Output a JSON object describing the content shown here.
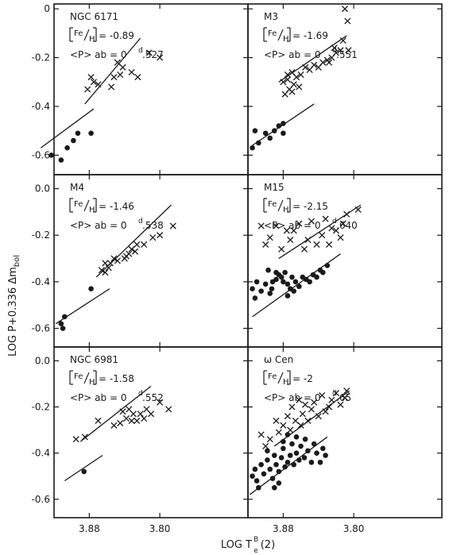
{
  "figure": {
    "ylabel": "LOG P+0.336 Δm",
    "ylabel_sub": "bol",
    "xlabel": "LOG T",
    "xlabel_sup": "B",
    "xlabel_sub": "e",
    "xlabel_tail": "(2)"
  },
  "chart_data": [
    {
      "type": "scatter",
      "cluster": "NGC 6171",
      "fe_label": "Fe",
      "fe_den": "H",
      "fe_value": "-0.89",
      "p_label": "<P> ab = 0",
      "p_sup": "d",
      "p_value": ".527",
      "xlim": [
        3.7,
        3.92
      ],
      "x_reversed": true,
      "ylim": [
        -0.68,
        0.02
      ],
      "yticks": [
        "0",
        "-0.2",
        "-0.4",
        "-0.6"
      ],
      "crosses": [
        [
          3.8,
          -0.2
        ],
        [
          3.812,
          -0.18
        ],
        [
          3.825,
          -0.28
        ],
        [
          3.832,
          -0.26
        ],
        [
          3.842,
          -0.24
        ],
        [
          3.845,
          -0.27
        ],
        [
          3.848,
          -0.22
        ],
        [
          3.855,
          -0.32
        ],
        [
          3.852,
          -0.28
        ],
        [
          3.87,
          -0.31
        ],
        [
          3.878,
          -0.28
        ],
        [
          3.875,
          -0.3
        ],
        [
          3.882,
          -0.33
        ]
      ],
      "dots": [
        [
          3.923,
          -0.6
        ],
        [
          3.912,
          -0.62
        ],
        [
          3.905,
          -0.57
        ],
        [
          3.898,
          -0.54
        ],
        [
          3.893,
          -0.51
        ],
        [
          3.878,
          -0.51
        ]
      ],
      "lines": [
        [
          [
            3.935,
            -0.57
          ],
          [
            3.875,
            -0.41
          ]
        ],
        [
          [
            3.885,
            -0.39
          ],
          [
            3.822,
            -0.12
          ]
        ]
      ]
    },
    {
      "type": "scatter",
      "cluster": "M3",
      "fe_label": "Fe",
      "fe_den": "H",
      "fe_value": "-1.69",
      "p_label": "<P> ab = 0",
      "p_sup": "d",
      "p_value": ".551",
      "xlim": [
        3.7,
        3.92
      ],
      "x_reversed": true,
      "ylim": [
        -0.68,
        0.02
      ],
      "crosses": [
        [
          3.81,
          0.0
        ],
        [
          3.807,
          -0.05
        ],
        [
          3.812,
          -0.13
        ],
        [
          3.806,
          -0.17
        ],
        [
          3.815,
          -0.17
        ],
        [
          3.82,
          -0.18
        ],
        [
          3.825,
          -0.2
        ],
        [
          3.83,
          -0.21
        ],
        [
          3.835,
          -0.22
        ],
        [
          3.845,
          -0.23
        ],
        [
          3.85,
          -0.25
        ],
        [
          3.855,
          -0.24
        ],
        [
          3.86,
          -0.27
        ],
        [
          3.865,
          -0.28
        ],
        [
          3.87,
          -0.26
        ],
        [
          3.875,
          -0.29
        ],
        [
          3.88,
          -0.3
        ],
        [
          3.868,
          -0.31
        ],
        [
          3.873,
          -0.33
        ],
        [
          3.878,
          -0.35
        ],
        [
          3.862,
          -0.32
        ],
        [
          3.84,
          -0.24
        ],
        [
          3.822,
          -0.16
        ],
        [
          3.828,
          -0.22
        ],
        [
          3.875,
          -0.27
        ],
        [
          3.87,
          -0.34
        ]
      ],
      "dots": [
        [
          3.915,
          -0.57
        ],
        [
          3.908,
          -0.55
        ],
        [
          3.9,
          -0.51
        ],
        [
          3.895,
          -0.53
        ],
        [
          3.89,
          -0.5
        ],
        [
          3.885,
          -0.48
        ],
        [
          3.88,
          -0.47
        ],
        [
          3.88,
          -0.51
        ],
        [
          3.912,
          -0.5
        ]
      ],
      "lines": [
        [
          [
            3.915,
            -0.56
          ],
          [
            3.845,
            -0.39
          ]
        ],
        [
          [
            3.885,
            -0.3
          ],
          [
            3.808,
            -0.11
          ]
        ]
      ]
    },
    {
      "type": "scatter",
      "cluster": "M4",
      "fe_label": "Fe",
      "fe_den": "H",
      "fe_value": "-1.46",
      "p_label": "<P> ab = 0",
      "p_sup": "d",
      "p_value": ".538",
      "xlim": [
        3.7,
        3.92
      ],
      "x_reversed": true,
      "ylim": [
        -0.68,
        0.06
      ],
      "yticks": [
        "0.0",
        "-0.2",
        "-0.4",
        "-0.6"
      ],
      "crosses": [
        [
          3.785,
          -0.16
        ],
        [
          3.8,
          -0.2
        ],
        [
          3.808,
          -0.21
        ],
        [
          3.818,
          -0.24
        ],
        [
          3.826,
          -0.24
        ],
        [
          3.828,
          -0.27
        ],
        [
          3.832,
          -0.26
        ],
        [
          3.835,
          -0.28
        ],
        [
          3.838,
          -0.29
        ],
        [
          3.84,
          -0.3
        ],
        [
          3.848,
          -0.31
        ],
        [
          3.852,
          -0.3
        ],
        [
          3.856,
          -0.32
        ],
        [
          3.858,
          -0.34
        ],
        [
          3.862,
          -0.36
        ],
        [
          3.866,
          -0.35
        ],
        [
          3.862,
          -0.32
        ]
      ],
      "dots": [
        [
          3.912,
          -0.58
        ],
        [
          3.91,
          -0.6
        ],
        [
          3.908,
          -0.55
        ],
        [
          3.878,
          -0.43
        ]
      ],
      "lines": [
        [
          [
            3.918,
            -0.58
          ],
          [
            3.857,
            -0.43
          ]
        ],
        [
          [
            3.872,
            -0.38
          ],
          [
            3.787,
            -0.07
          ]
        ]
      ]
    },
    {
      "type": "scatter",
      "cluster": "M15",
      "fe_label": "Fe",
      "fe_den": "H",
      "fe_value": "-2.15",
      "p_label": "<P> ab = 0",
      "p_sup": "d",
      "p_value": ".640",
      "xlim": [
        3.7,
        3.92
      ],
      "x_reversed": true,
      "ylim": [
        -0.68,
        0.06
      ],
      "crosses": [
        [
          3.795,
          -0.09
        ],
        [
          3.808,
          -0.11
        ],
        [
          3.812,
          -0.15
        ],
        [
          3.815,
          -0.21
        ],
        [
          3.82,
          -0.18
        ],
        [
          3.825,
          -0.17
        ],
        [
          3.828,
          -0.24
        ],
        [
          3.832,
          -0.13
        ],
        [
          3.836,
          -0.2
        ],
        [
          3.842,
          -0.24
        ],
        [
          3.848,
          -0.14
        ],
        [
          3.852,
          -0.22
        ],
        [
          3.856,
          -0.26
        ],
        [
          3.862,
          -0.15
        ],
        [
          3.868,
          -0.18
        ],
        [
          3.872,
          -0.22
        ],
        [
          3.876,
          -0.18
        ],
        [
          3.882,
          -0.26
        ],
        [
          3.888,
          -0.16
        ],
        [
          3.895,
          -0.21
        ],
        [
          3.9,
          -0.24
        ],
        [
          3.905,
          -0.16
        ]
      ],
      "dots": [
        [
          3.912,
          -0.47
        ],
        [
          3.905,
          -0.44
        ],
        [
          3.9,
          -0.41
        ],
        [
          3.895,
          -0.45
        ],
        [
          3.892,
          -0.4
        ],
        [
          3.888,
          -0.39
        ],
        [
          3.885,
          -0.37
        ],
        [
          3.882,
          -0.38
        ],
        [
          3.88,
          -0.4
        ],
        [
          3.878,
          -0.36
        ],
        [
          3.875,
          -0.41
        ],
        [
          3.872,
          -0.43
        ],
        [
          3.87,
          -0.38
        ],
        [
          3.866,
          -0.4
        ],
        [
          3.862,
          -0.42
        ],
        [
          3.858,
          -0.38
        ],
        [
          3.854,
          -0.39
        ],
        [
          3.85,
          -0.4
        ],
        [
          3.846,
          -0.37
        ],
        [
          3.842,
          -0.38
        ],
        [
          3.838,
          -0.35
        ],
        [
          3.835,
          -0.36
        ],
        [
          3.83,
          -0.33
        ],
        [
          3.888,
          -0.36
        ],
        [
          3.893,
          -0.43
        ],
        [
          3.897,
          -0.35
        ],
        [
          3.91,
          -0.4
        ],
        [
          3.915,
          -0.43
        ],
        [
          3.868,
          -0.44
        ],
        [
          3.875,
          -0.46
        ]
      ],
      "lines": [
        [
          [
            3.915,
            -0.55
          ],
          [
            3.815,
            -0.28
          ]
        ],
        [
          [
            3.885,
            -0.3
          ],
          [
            3.792,
            -0.07
          ]
        ]
      ]
    },
    {
      "type": "scatter",
      "cluster": "NGC 6981",
      "fe_label": "Fe",
      "fe_den": "H",
      "fe_value": "-1.58",
      "p_label": "<P> ab = 0",
      "p_sup": "d",
      "p_value": ".552",
      "xlim": [
        3.7,
        3.92
      ],
      "x_reversed": true,
      "ylim": [
        -0.68,
        0.06
      ],
      "yticks": [
        "0.0",
        "-0.2",
        "-0.4",
        "-0.6"
      ],
      "crosses": [
        [
          3.79,
          -0.21
        ],
        [
          3.8,
          -0.18
        ],
        [
          3.81,
          -0.23
        ],
        [
          3.815,
          -0.21
        ],
        [
          3.818,
          -0.25
        ],
        [
          3.822,
          -0.23
        ],
        [
          3.826,
          -0.26
        ],
        [
          3.83,
          -0.23
        ],
        [
          3.832,
          -0.26
        ],
        [
          3.835,
          -0.21
        ],
        [
          3.838,
          -0.25
        ],
        [
          3.842,
          -0.22
        ],
        [
          3.845,
          -0.27
        ],
        [
          3.852,
          -0.28
        ],
        [
          3.87,
          -0.26
        ],
        [
          3.885,
          -0.33
        ],
        [
          3.895,
          -0.34
        ]
      ],
      "dots": [
        [
          3.886,
          -0.48
        ]
      ],
      "lines": [
        [
          [
            3.908,
            -0.52
          ],
          [
            3.865,
            -0.41
          ]
        ],
        [
          [
            3.89,
            -0.35
          ],
          [
            3.81,
            -0.11
          ]
        ]
      ]
    },
    {
      "type": "scatter",
      "cluster": "ω Cen",
      "fe_label": "Fe",
      "fe_den": "H",
      "fe_value": "-2",
      "p_label": "<P> ab = 0",
      "p_sup": "d",
      "p_value": ".65",
      "xlim": [
        3.7,
        3.92
      ],
      "x_reversed": true,
      "ylim": [
        -0.68,
        0.06
      ],
      "xticks": [
        "3.88",
        "3.80"
      ],
      "crosses": [
        [
          3.808,
          -0.13
        ],
        [
          3.81,
          -0.16
        ],
        [
          3.815,
          -0.19
        ],
        [
          3.82,
          -0.14
        ],
        [
          3.825,
          -0.17
        ],
        [
          3.828,
          -0.2
        ],
        [
          3.832,
          -0.22
        ],
        [
          3.836,
          -0.15
        ],
        [
          3.84,
          -0.24
        ],
        [
          3.845,
          -0.18
        ],
        [
          3.848,
          -0.21
        ],
        [
          3.852,
          -0.26
        ],
        [
          3.855,
          -0.19
        ],
        [
          3.858,
          -0.23
        ],
        [
          3.862,
          -0.17
        ],
        [
          3.866,
          -0.26
        ],
        [
          3.87,
          -0.2
        ],
        [
          3.875,
          -0.24
        ],
        [
          3.88,
          -0.28
        ],
        [
          3.885,
          -0.31
        ],
        [
          3.888,
          -0.26
        ],
        [
          3.895,
          -0.34
        ],
        [
          3.9,
          -0.37
        ],
        [
          3.905,
          -0.32
        ],
        [
          3.872,
          -0.3
        ],
        [
          3.86,
          -0.28
        ]
      ],
      "dots": [
        [
          3.915,
          -0.5
        ],
        [
          3.912,
          -0.47
        ],
        [
          3.91,
          -0.52
        ],
        [
          3.905,
          -0.45
        ],
        [
          3.902,
          -0.49
        ],
        [
          3.898,
          -0.43
        ],
        [
          3.895,
          -0.47
        ],
        [
          3.892,
          -0.51
        ],
        [
          3.89,
          -0.41
        ],
        [
          3.888,
          -0.45
        ],
        [
          3.885,
          -0.48
        ],
        [
          3.882,
          -0.42
        ],
        [
          3.88,
          -0.38
        ],
        [
          3.878,
          -0.46
        ],
        [
          3.875,
          -0.44
        ],
        [
          3.872,
          -0.41
        ],
        [
          3.87,
          -0.36
        ],
        [
          3.868,
          -0.45
        ],
        [
          3.865,
          -0.4
        ],
        [
          3.862,
          -0.43
        ],
        [
          3.86,
          -0.37
        ],
        [
          3.856,
          -0.42
        ],
        [
          3.852,
          -0.39
        ],
        [
          3.848,
          -0.44
        ],
        [
          3.845,
          -0.36
        ],
        [
          3.842,
          -0.4
        ],
        [
          3.838,
          -0.44
        ],
        [
          3.835,
          -0.38
        ],
        [
          3.832,
          -0.41
        ],
        [
          3.885,
          -0.53
        ],
        [
          3.89,
          -0.55
        ],
        [
          3.88,
          -0.35
        ],
        [
          3.875,
          -0.32
        ],
        [
          3.898,
          -0.39
        ],
        [
          3.908,
          -0.55
        ],
        [
          3.865,
          -0.33
        ],
        [
          3.855,
          -0.34
        ]
      ],
      "lines": [
        [
          [
            3.918,
            -0.58
          ],
          [
            3.83,
            -0.33
          ]
        ],
        [
          [
            3.89,
            -0.37
          ],
          [
            3.805,
            -0.13
          ]
        ]
      ]
    },
    {
      "type": "axis",
      "panel": "x-axis-left",
      "xticks": [
        "3.88",
        "3.80"
      ]
    }
  ]
}
